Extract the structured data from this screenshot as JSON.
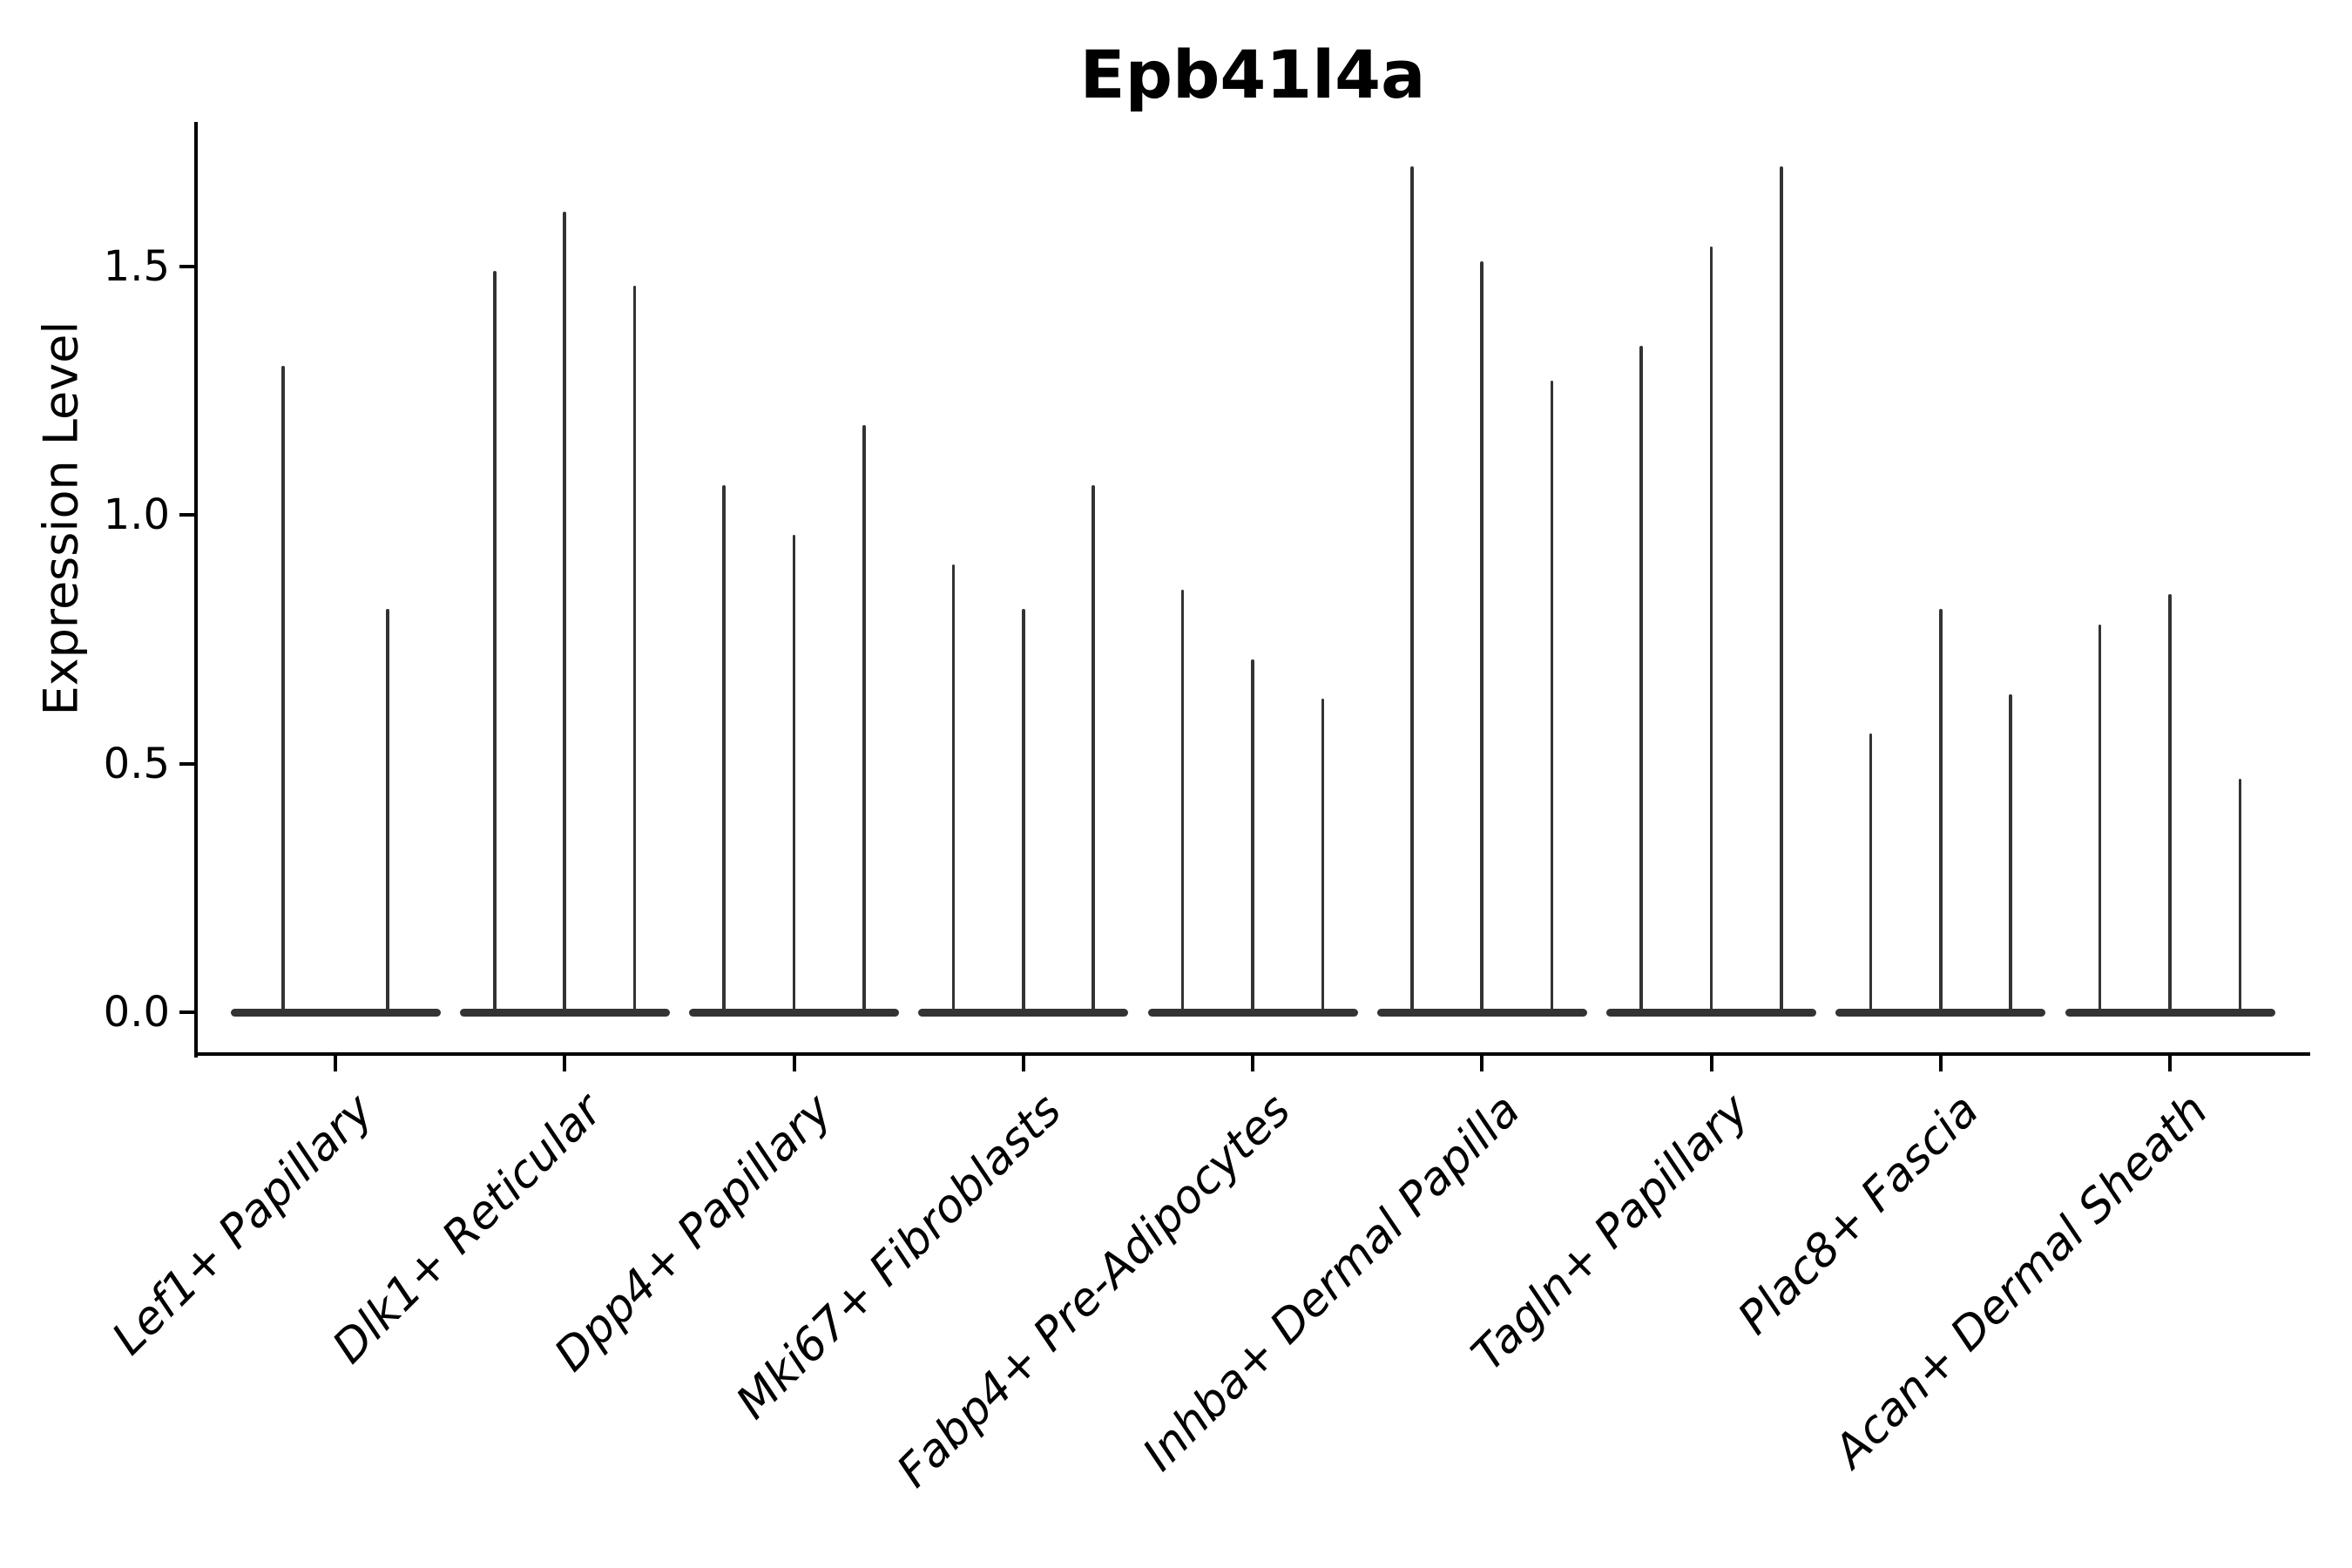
{
  "title": "Epb41l4a",
  "y_axis": {
    "label": "Expression Level",
    "tick_labels": [
      "0.0",
      "0.5",
      "1.0",
      "1.5"
    ]
  },
  "x_axis": {
    "tick_label_style": "italic",
    "tick_label_rotation_deg": 45
  },
  "colors": {
    "background": "#ffffff",
    "violin": "#333333",
    "axis": "#000000",
    "text": "#000000"
  },
  "chart_data": {
    "type": "violin",
    "title": "Epb41l4a",
    "xlabel": "",
    "ylabel": "Expression Level",
    "ylim": [
      -0.08,
      1.79
    ],
    "yticks": [
      0.0,
      0.5,
      1.0,
      1.5
    ],
    "grid": false,
    "legend": null,
    "spines": [
      "left",
      "bottom"
    ],
    "description": "Single-cell expression violin plot; violins are collapsed to a flat base at 0 with a thin spike up to the maximum expression per group (2-3 grouped violins per cluster).",
    "categories": [
      "Lef1+ Papillary",
      "Dlk1+ Reticular",
      "Dpp4+ Papillary",
      "Mki67+ Fibroblasts",
      "Fabp4+ Pre-Adipocytes",
      "Inhba+ Dermal Papilla",
      "Tagln+ Papillary",
      "Plac8+ Fascia",
      "Acan+ Dermal Sheath"
    ],
    "series": [
      {
        "name": "Lef1+ Papillary",
        "spike_maxima": [
          1.3,
          0.81
        ]
      },
      {
        "name": "Dlk1+ Reticular",
        "spike_maxima": [
          1.49,
          1.61,
          1.46
        ]
      },
      {
        "name": "Dpp4+ Papillary",
        "spike_maxima": [
          1.06,
          0.96,
          1.18
        ]
      },
      {
        "name": "Mki67+ Fibroblasts",
        "spike_maxima": [
          0.9,
          0.81,
          1.06
        ]
      },
      {
        "name": "Fabp4+ Pre-Adipocytes",
        "spike_maxima": [
          0.85,
          0.71,
          0.63
        ]
      },
      {
        "name": "Inhba+ Dermal Papilla",
        "spike_maxima": [
          1.7,
          1.51,
          1.27
        ]
      },
      {
        "name": "Tagln+ Papillary",
        "spike_maxima": [
          1.34,
          1.54,
          1.7
        ]
      },
      {
        "name": "Plac8+ Fascia",
        "spike_maxima": [
          0.56,
          0.81,
          0.64
        ]
      },
      {
        "name": "Acan+ Dermal Sheath",
        "spike_maxima": [
          0.78,
          0.84,
          0.47
        ]
      }
    ],
    "baseline_value": 0.0
  }
}
